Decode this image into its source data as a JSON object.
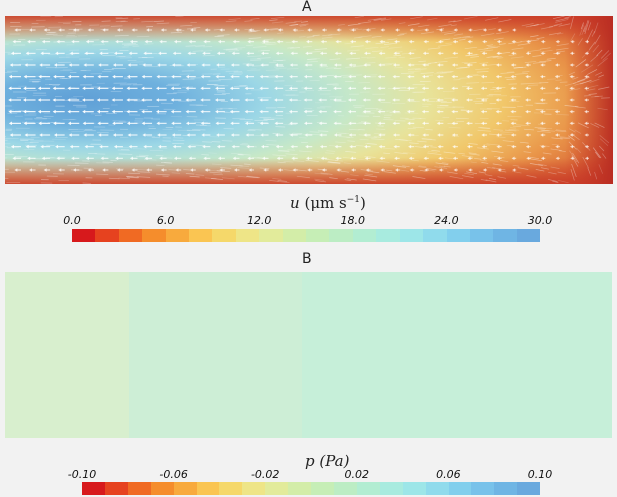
{
  "panels": {
    "a": {
      "letter": "A"
    },
    "b": {
      "letter": "B"
    }
  },
  "colorbar_a": {
    "title_var": "u",
    "title_unit_open": "(",
    "title_unit_main": "μm s",
    "title_unit_exp": "−1",
    "title_unit_close": ")",
    "ticks": [
      "0.0",
      "6.0",
      "12.0",
      "18.0",
      "24.0",
      "30.0"
    ],
    "tick_values": [
      0,
      6,
      12,
      18,
      24,
      30
    ],
    "range": [
      0,
      30
    ]
  },
  "colorbar_b": {
    "title_var": "p",
    "title_unit": "(Pa)",
    "ticks": [
      "-0.10",
      "-0.06",
      "-0.02",
      "0.02",
      "0.06",
      "0.10"
    ],
    "tick_values": [
      -0.1,
      -0.06,
      -0.02,
      0.02,
      0.06,
      0.1
    ],
    "range": [
      -0.1,
      0.1
    ]
  },
  "colormap": [
    "#d7191c",
    "#e6421f",
    "#f06a23",
    "#f58d2c",
    "#f8aa3d",
    "#fac552",
    "#f5d86a",
    "#eee587",
    "#e2eb9b",
    "#d3eda8",
    "#c6eeb6",
    "#bcedc4",
    "#b2edd2",
    "#a8ebdf",
    "#9de6e8",
    "#90dbec",
    "#82cfed",
    "#78c2ea",
    "#6fb5e4",
    "#69a9de"
  ],
  "pressure_regions": [
    {
      "value": -0.005,
      "color": "#d8efce"
    },
    {
      "value": 0.0,
      "color": "#cdeed6"
    },
    {
      "value": 0.005,
      "color": "#c6efd9"
    }
  ],
  "colors": {
    "background": "#f2f2f2",
    "arrow": "#ffffff"
  }
}
